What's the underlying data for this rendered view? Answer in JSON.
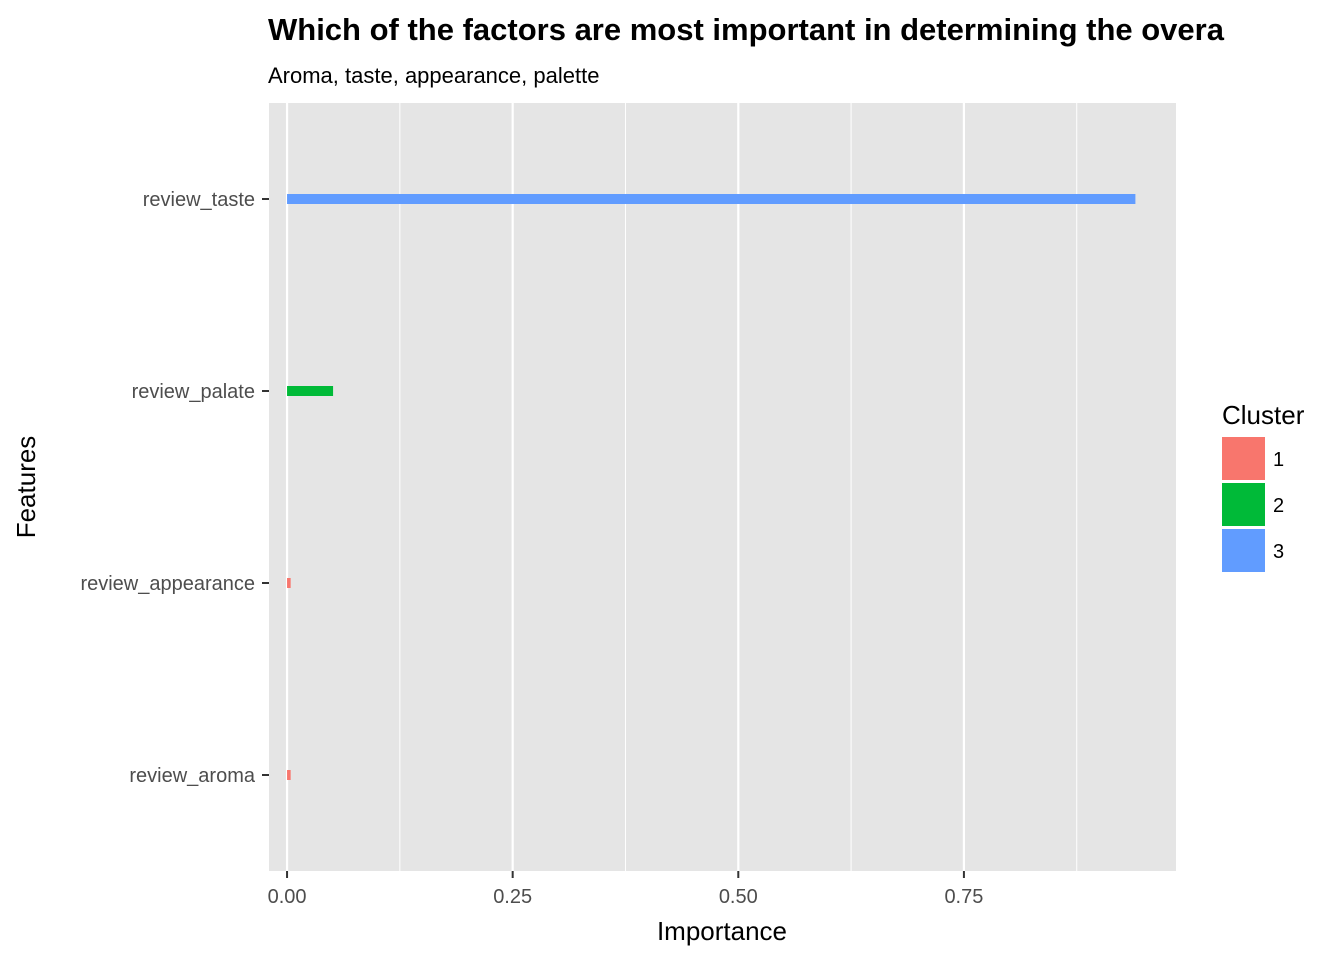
{
  "chart_data": {
    "type": "bar",
    "orientation": "horizontal",
    "title": "Which of the factors are most important in determining the overa",
    "subtitle": "Aroma, taste, appearance, palette",
    "xlabel": "Importance",
    "ylabel": "Features",
    "xlim": [
      -0.02,
      0.985
    ],
    "x_ticks": [
      0.0,
      0.25,
      0.5,
      0.75
    ],
    "x_tick_labels": [
      "0.00",
      "0.25",
      "0.50",
      "0.75"
    ],
    "categories": [
      "review_taste",
      "review_palate",
      "review_appearance",
      "review_aroma"
    ],
    "values": [
      0.94,
      0.051,
      0.004,
      0.004
    ],
    "cluster": [
      "3",
      "2",
      "1",
      "1"
    ],
    "grid": true,
    "legend": {
      "title": "Cluster",
      "position": "right",
      "items": [
        {
          "label": "1",
          "color": "#F8766D"
        },
        {
          "label": "2",
          "color": "#00BA38"
        },
        {
          "label": "3",
          "color": "#619CFF"
        }
      ]
    },
    "colors": {
      "panel_background": "#e5e5e5",
      "grid_line": "#ffffff"
    }
  }
}
